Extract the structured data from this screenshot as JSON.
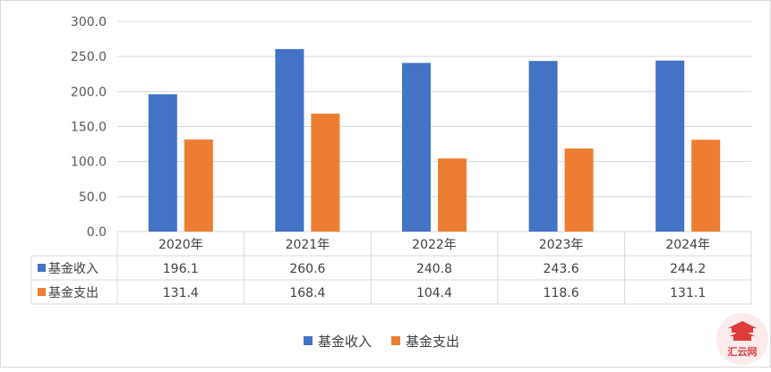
{
  "chart_data": {
    "type": "bar",
    "categories": [
      "2020年",
      "2021年",
      "2022年",
      "2023年",
      "2024年"
    ],
    "series": [
      {
        "name": "基金收入",
        "color": "#4472c4",
        "values": [
          196.1,
          260.6,
          240.8,
          243.6,
          244.2
        ]
      },
      {
        "name": "基金支出",
        "color": "#ed7d31",
        "values": [
          131.4,
          168.4,
          104.4,
          118.6,
          131.1
        ]
      }
    ],
    "ylim": [
      0,
      300
    ],
    "yticks": [
      "0.0",
      "50.0",
      "100.0",
      "150.0",
      "200.0",
      "250.0",
      "300.0"
    ],
    "grid": true,
    "data_table": true,
    "legend_position": "bottom"
  },
  "watermark": {
    "text": "汇云网",
    "color": "#e03c3c",
    "icon": "pagoda-logo-icon"
  }
}
